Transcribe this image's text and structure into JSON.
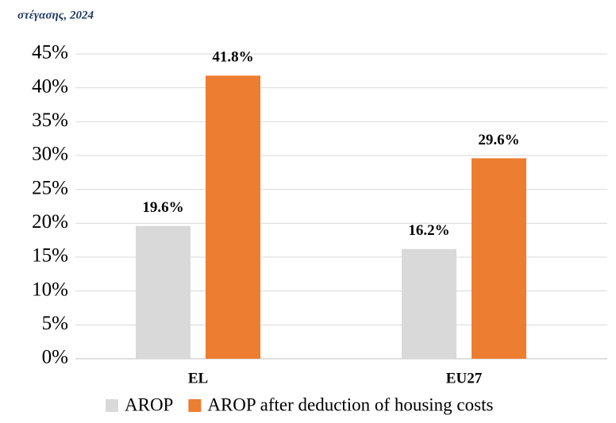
{
  "chart_data": {
    "type": "bar",
    "title": "στέγασης, 2024",
    "categories": [
      "EL",
      "EU27"
    ],
    "series": [
      {
        "name": "AROP",
        "color": "#d9d9d9",
        "values": [
          19.6,
          16.2
        ],
        "value_labels": [
          "19.6%",
          "16.2%"
        ]
      },
      {
        "name": "AROP after deduction of housing costs",
        "color": "#ed7d31",
        "values": [
          41.8,
          29.6
        ],
        "value_labels": [
          "41.8%",
          "29.6%"
        ]
      }
    ],
    "ylim": [
      0,
      45
    ],
    "yticks": [
      {
        "value": 0,
        "label": "0%"
      },
      {
        "value": 5,
        "label": "5%"
      },
      {
        "value": 10,
        "label": "10%"
      },
      {
        "value": 15,
        "label": "15%"
      },
      {
        "value": 20,
        "label": "20%"
      },
      {
        "value": 25,
        "label": "25%"
      },
      {
        "value": 30,
        "label": "30%"
      },
      {
        "value": 35,
        "label": "35%"
      },
      {
        "value": 40,
        "label": "40%"
      },
      {
        "value": 45,
        "label": "45%"
      }
    ],
    "grid": true
  }
}
